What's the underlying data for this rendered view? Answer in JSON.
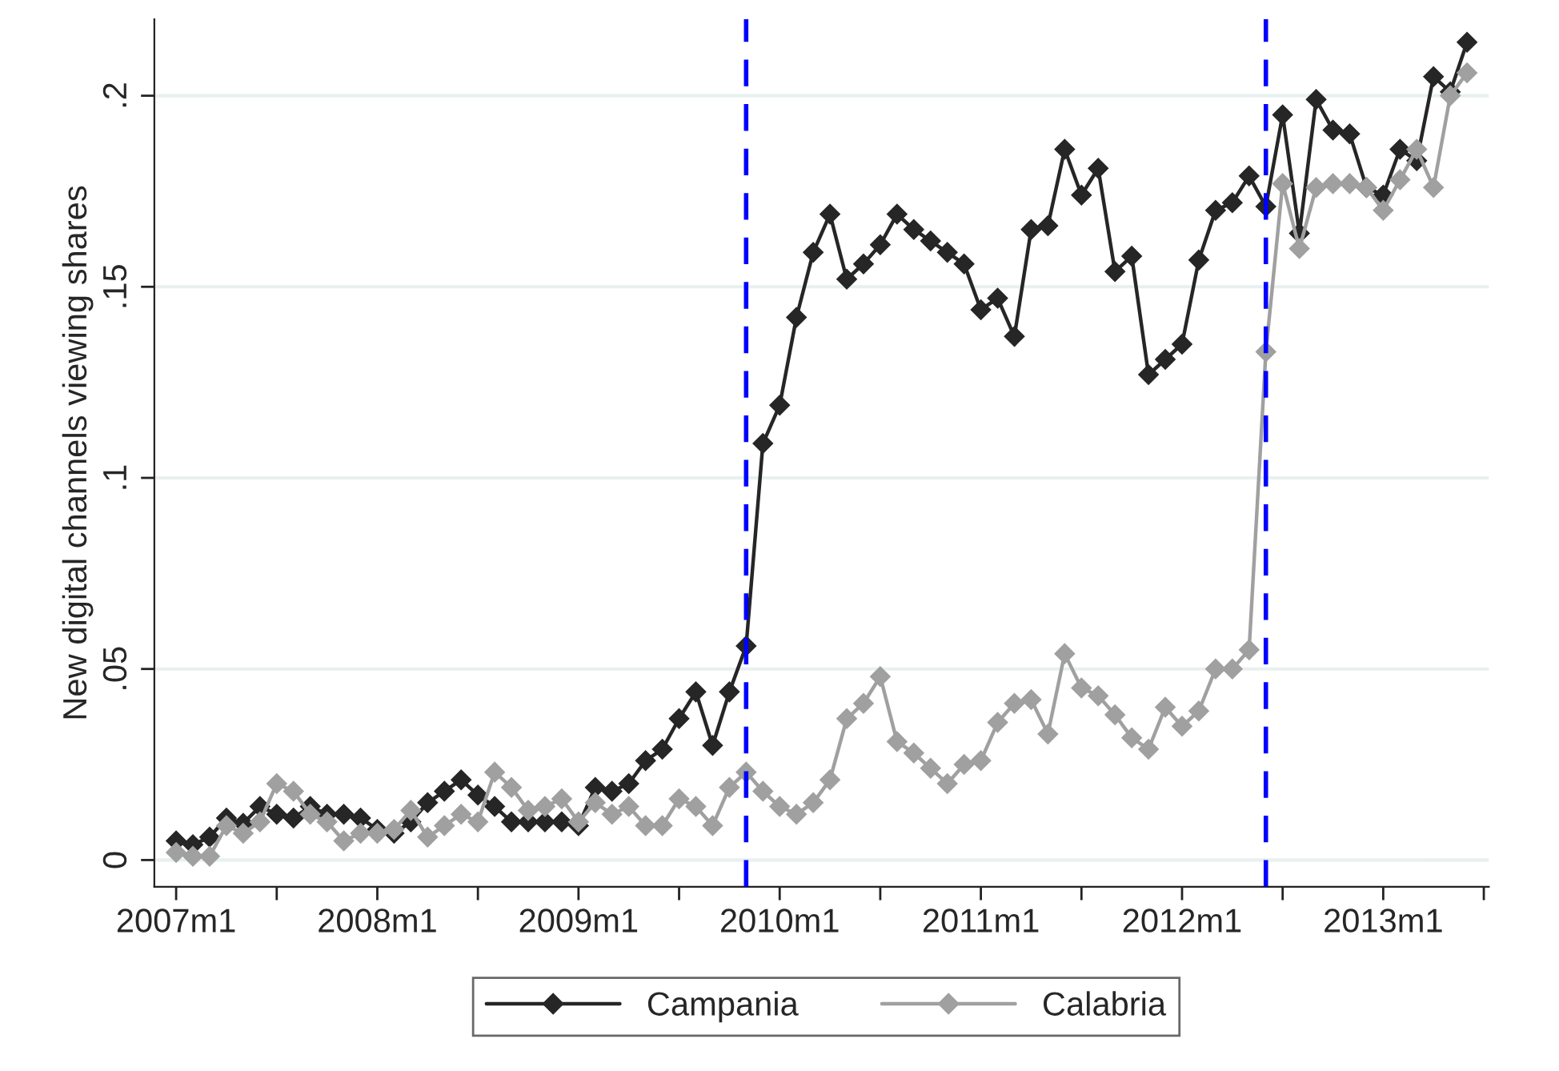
{
  "chart_data": {
    "type": "line",
    "ylabel": "New digital channels viewing shares",
    "x": [
      "2007-01",
      "2007-02",
      "2007-03",
      "2007-04",
      "2007-05",
      "2007-06",
      "2007-07",
      "2007-08",
      "2007-09",
      "2007-10",
      "2007-11",
      "2007-12",
      "2008-01",
      "2008-02",
      "2008-03",
      "2008-04",
      "2008-05",
      "2008-06",
      "2008-07",
      "2008-08",
      "2008-09",
      "2008-10",
      "2008-11",
      "2008-12",
      "2009-01",
      "2009-02",
      "2009-03",
      "2009-04",
      "2009-05",
      "2009-06",
      "2009-07",
      "2009-08",
      "2009-09",
      "2009-10",
      "2009-11",
      "2009-12",
      "2010-01",
      "2010-02",
      "2010-03",
      "2010-04",
      "2010-05",
      "2010-06",
      "2010-07",
      "2010-08",
      "2010-09",
      "2010-10",
      "2010-11",
      "2010-12",
      "2011-01",
      "2011-02",
      "2011-03",
      "2011-04",
      "2011-05",
      "2011-06",
      "2011-07",
      "2011-08",
      "2011-09",
      "2011-10",
      "2011-11",
      "2011-12",
      "2012-01",
      "2012-02",
      "2012-03",
      "2012-04",
      "2012-05",
      "2012-06",
      "2012-07",
      "2012-08",
      "2012-09",
      "2012-10",
      "2012-11",
      "2012-12",
      "2013-01",
      "2013-02",
      "2013-03",
      "2013-04",
      "2013-05",
      "2013-06"
    ],
    "series": [
      {
        "name": "Campania",
        "color": "#262626",
        "values": [
          0.005,
          0.004,
          0.006,
          0.011,
          0.0096,
          0.014,
          0.012,
          0.011,
          0.014,
          0.012,
          0.012,
          0.011,
          0.008,
          0.007,
          0.01,
          0.015,
          0.018,
          0.021,
          0.017,
          0.014,
          0.01,
          0.01,
          0.01,
          0.01,
          0.009,
          0.019,
          0.018,
          0.02,
          0.026,
          0.029,
          0.037,
          0.044,
          0.03,
          0.044,
          0.056,
          0.109,
          0.119,
          0.142,
          0.159,
          0.169,
          0.152,
          0.156,
          0.161,
          0.169,
          0.165,
          0.162,
          0.159,
          0.156,
          0.144,
          0.147,
          0.137,
          0.165,
          0.166,
          0.186,
          0.174,
          0.181,
          0.154,
          0.158,
          0.127,
          0.131,
          0.135,
          0.157,
          0.17,
          0.172,
          0.179,
          0.171,
          0.195,
          0.164,
          0.199,
          0.191,
          0.19,
          0.176,
          0.174,
          0.186,
          0.183,
          0.205,
          0.201,
          0.214
        ]
      },
      {
        "name": "Calabria",
        "color": "#a0a0a0",
        "values": [
          0.002,
          0.001,
          0.001,
          0.009,
          0.007,
          0.01,
          0.02,
          0.018,
          0.012,
          0.01,
          0.005,
          0.007,
          0.007,
          0.008,
          0.013,
          0.006,
          0.009,
          0.012,
          0.01,
          0.023,
          0.019,
          0.013,
          0.014,
          0.016,
          0.01,
          0.015,
          0.012,
          0.014,
          0.009,
          0.009,
          0.016,
          0.014,
          0.009,
          0.019,
          0.023,
          0.018,
          0.014,
          0.012,
          0.015,
          0.021,
          0.037,
          0.041,
          0.048,
          0.031,
          0.028,
          0.024,
          0.02,
          0.025,
          0.026,
          0.036,
          0.041,
          0.042,
          0.033,
          0.054,
          0.045,
          0.043,
          0.038,
          0.032,
          0.029,
          0.04,
          0.035,
          0.039,
          0.05,
          0.05,
          0.055,
          0.133,
          0.177,
          0.16,
          0.176,
          0.177,
          0.177,
          0.176,
          0.17,
          0.178,
          0.186,
          0.176,
          0.2,
          0.206
        ]
      }
    ],
    "xlim": [
      "2006-11-22",
      "2013-07-10"
    ],
    "xticks": [
      {
        "value": "2007-01",
        "label": "2007m1"
      },
      {
        "value": "2007-07",
        "label": null
      },
      {
        "value": "2008-01",
        "label": "2008m1"
      },
      {
        "value": "2008-07",
        "label": null
      },
      {
        "value": "2009-01",
        "label": "2009m1"
      },
      {
        "value": "2009-07",
        "label": null
      },
      {
        "value": "2010-01",
        "label": "2010m1"
      },
      {
        "value": "2010-07",
        "label": null
      },
      {
        "value": "2011-01",
        "label": "2011m1"
      },
      {
        "value": "2011-07",
        "label": null
      },
      {
        "value": "2012-01",
        "label": "2012m1"
      },
      {
        "value": "2012-07",
        "label": null
      },
      {
        "value": "2013-01",
        "label": "2013m1"
      },
      {
        "value": "2013-07",
        "label": null
      }
    ],
    "ylim": [
      -0.007,
      0.22
    ],
    "yticks": [
      0,
      {
        "value": 0.05,
        "label": ".05"
      },
      {
        "value": 0.1,
        "label": ".1"
      },
      {
        "value": 0.15,
        "label": ".15"
      },
      {
        "value": 0.2,
        "label": ".2"
      }
    ],
    "ref_lines": [
      {
        "axis": "x",
        "value": "2009-11",
        "color": "#0000ff",
        "line_style": "dashed"
      },
      {
        "axis": "x",
        "value": "2012-06",
        "color": "#0000ff",
        "line_style": "dashed"
      }
    ],
    "grid": "y",
    "legend": "bottom",
    "marker": "diamond",
    "line_style": "solid"
  }
}
